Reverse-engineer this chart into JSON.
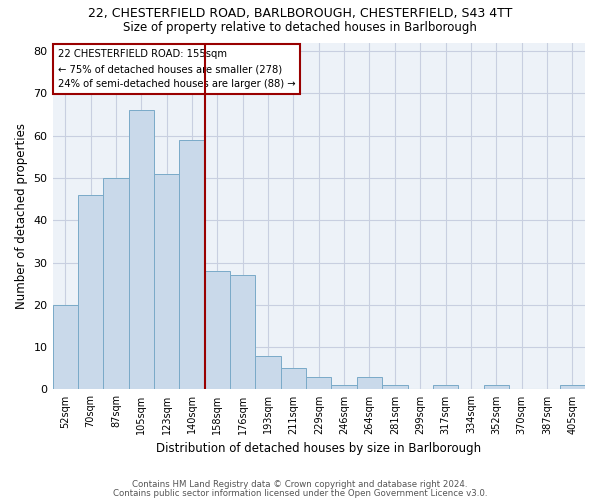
{
  "title1": "22, CHESTERFIELD ROAD, BARLBOROUGH, CHESTERFIELD, S43 4TT",
  "title2": "Size of property relative to detached houses in Barlborough",
  "xlabel": "Distribution of detached houses by size in Barlborough",
  "ylabel": "Number of detached properties",
  "bar_labels": [
    "52sqm",
    "70sqm",
    "87sqm",
    "105sqm",
    "123sqm",
    "140sqm",
    "158sqm",
    "176sqm",
    "193sqm",
    "211sqm",
    "229sqm",
    "246sqm",
    "264sqm",
    "281sqm",
    "299sqm",
    "317sqm",
    "334sqm",
    "352sqm",
    "370sqm",
    "387sqm",
    "405sqm"
  ],
  "bar_values": [
    20,
    46,
    50,
    66,
    51,
    59,
    28,
    27,
    8,
    5,
    3,
    1,
    3,
    1,
    0,
    1,
    0,
    1,
    0,
    0,
    1
  ],
  "bar_color": "#c9d9ea",
  "bar_edge_color": "#7aaac8",
  "grid_color": "#c8cfe0",
  "vline_index": 6,
  "vline_color": "#990000",
  "annotation_title": "22 CHESTERFIELD ROAD: 155sqm",
  "annotation_line1": "← 75% of detached houses are smaller (278)",
  "annotation_line2": "24% of semi-detached houses are larger (88) →",
  "annotation_box_edge": "#990000",
  "ylim": [
    0,
    82
  ],
  "yticks": [
    0,
    10,
    20,
    30,
    40,
    50,
    60,
    70,
    80
  ],
  "footer1": "Contains HM Land Registry data © Crown copyright and database right 2024.",
  "footer2": "Contains public sector information licensed under the Open Government Licence v3.0.",
  "bg_color": "#edf2f8"
}
